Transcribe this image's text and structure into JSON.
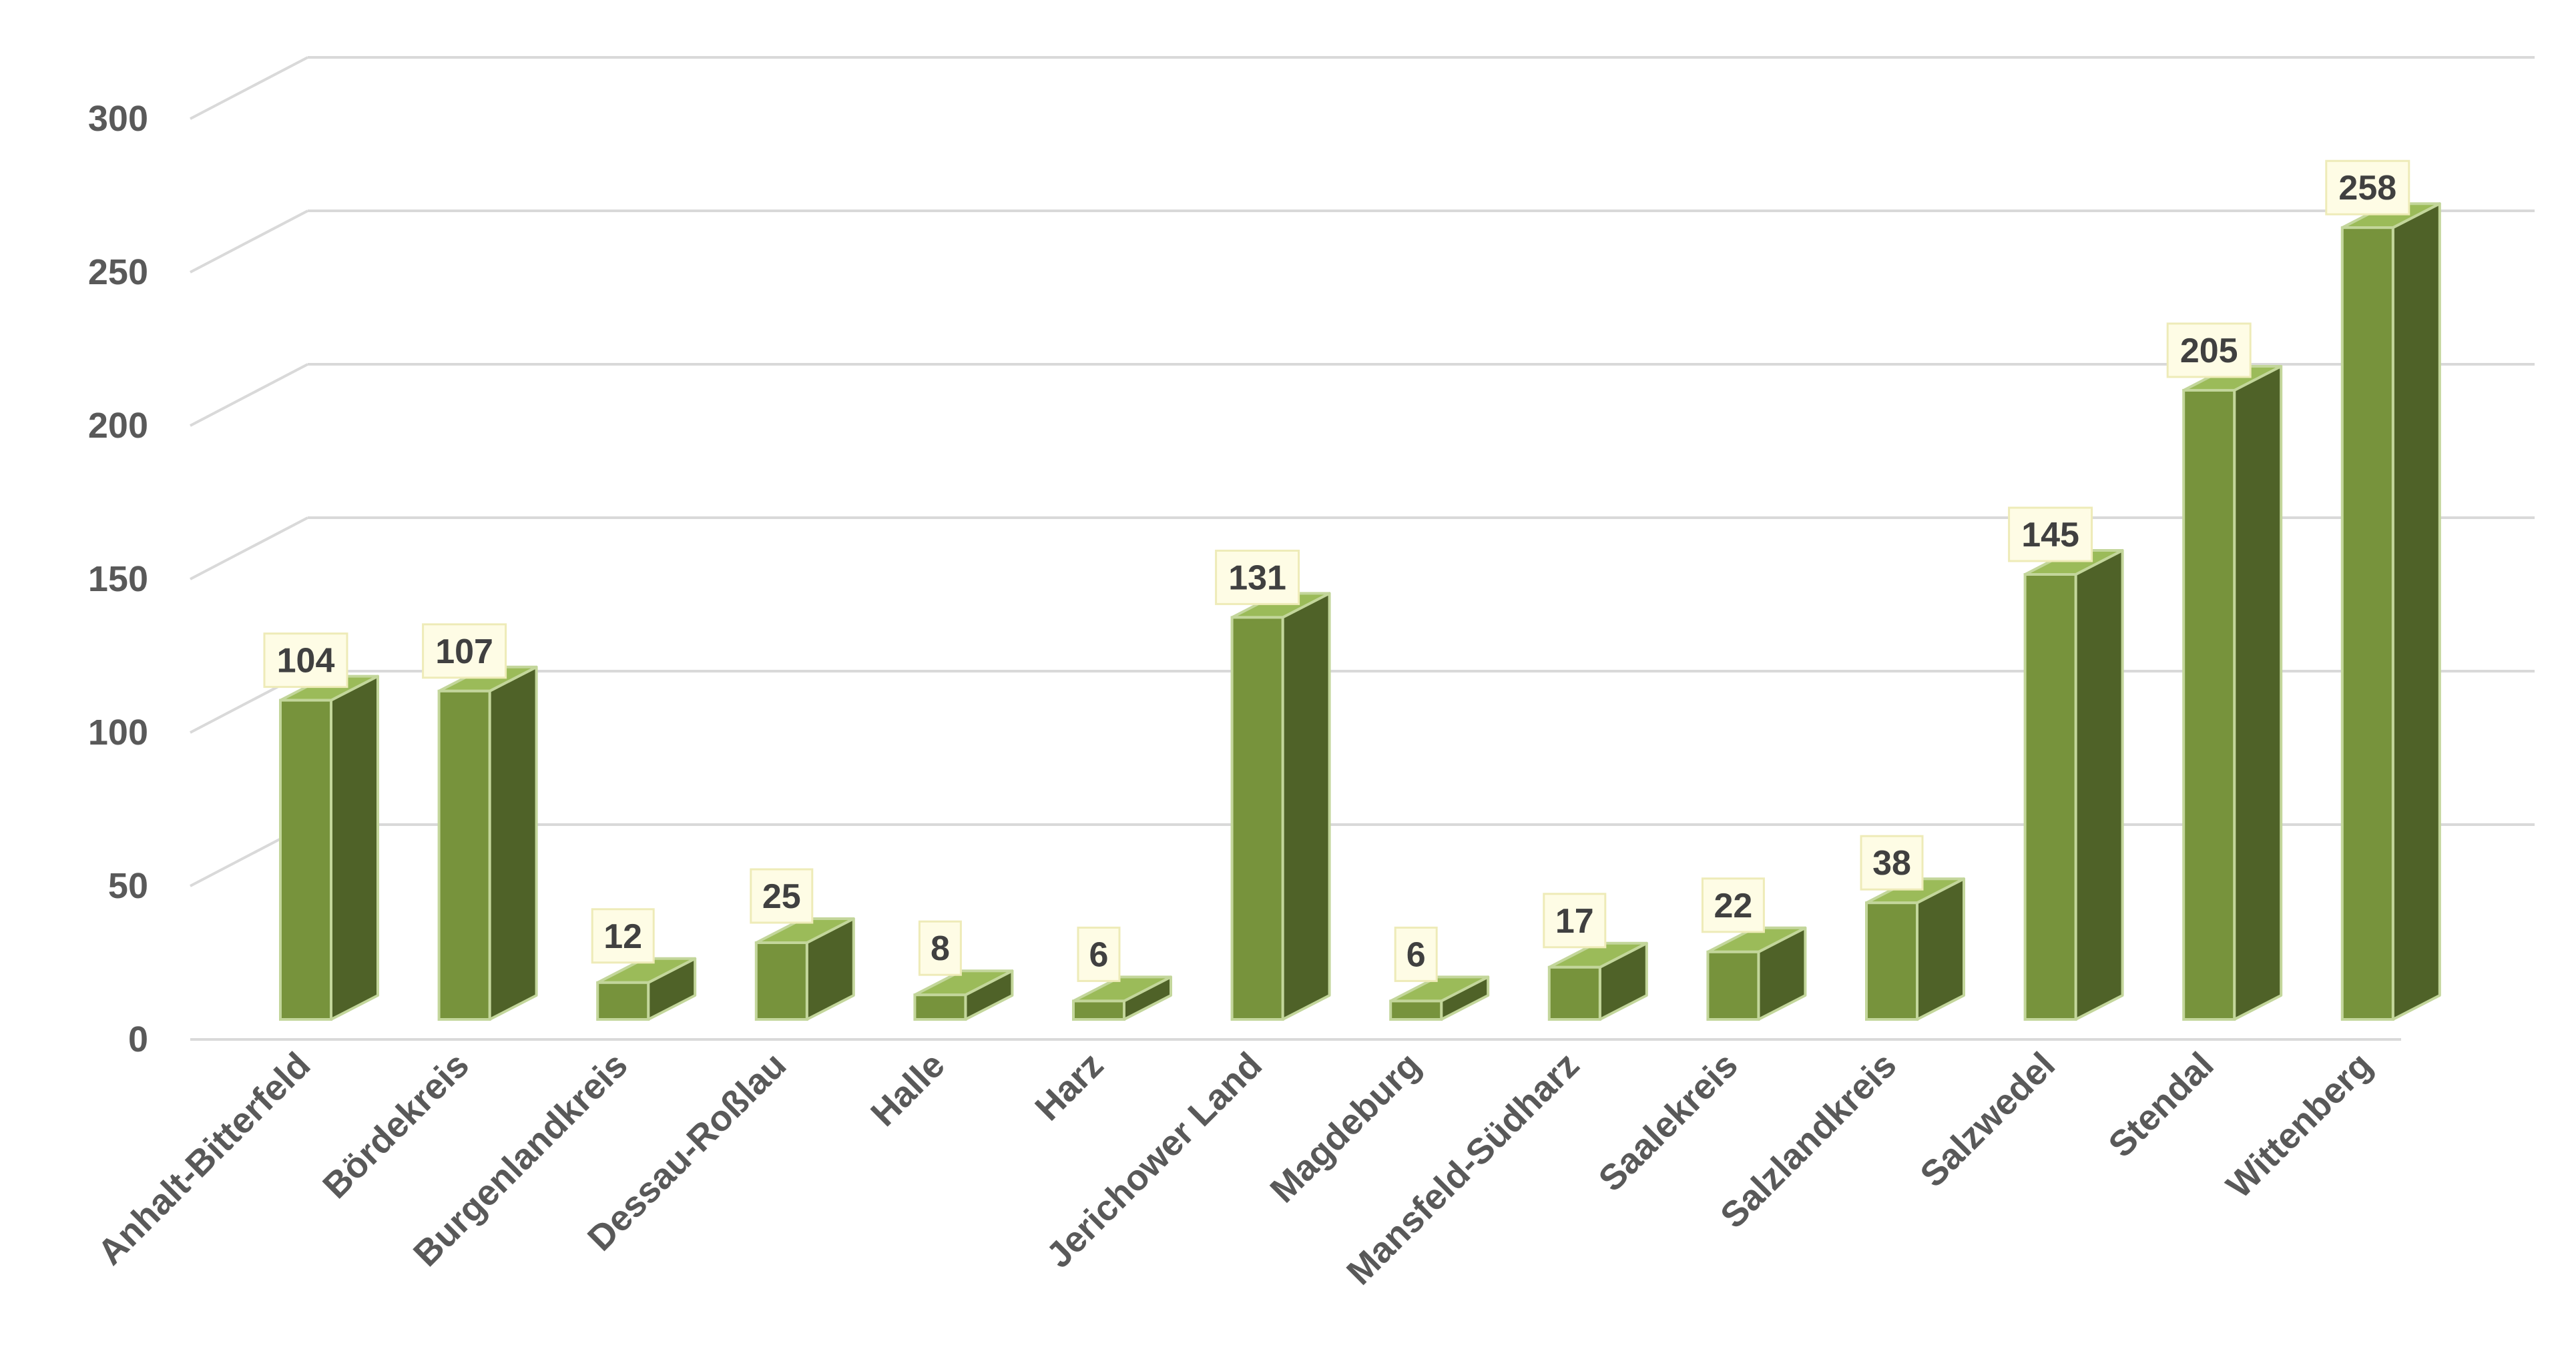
{
  "chart_data": {
    "type": "bar",
    "categories": [
      "Anhalt-Bitterfeld",
      "Bördekreis",
      "Burgenlandkreis",
      "Dessau-Roßlau",
      "Halle",
      "Harz",
      "Jerichower Land",
      "Magdeburg",
      "Mansfeld-Südharz",
      "Saalekreis",
      "Salzlandkreis",
      "Salzwedel",
      "Stendal",
      "Wittenberg"
    ],
    "values": [
      104,
      107,
      12,
      25,
      8,
      6,
      131,
      6,
      17,
      22,
      38,
      145,
      205,
      258
    ],
    "data_labels": [
      "104",
      "107",
      "12",
      "25",
      "8",
      "6",
      "131",
      "6",
      "17",
      "22",
      "38",
      "145",
      "205",
      "258"
    ],
    "y_ticks": [
      "0",
      "50",
      "100",
      "150",
      "200",
      "250",
      "300"
    ],
    "ylim": [
      0,
      300
    ],
    "grid": true,
    "style": "3d-column",
    "colors": {
      "bar_front": "#77933C",
      "bar_side": "#4F6228",
      "bar_top": "#9BBB59",
      "bar_edge": "#C3D69B",
      "label_box": "#FEFCE5",
      "label_box_border": "#EEEBB8",
      "gridline": "#D9D9D9",
      "axis_text": "#595959",
      "label_text": "#404040"
    }
  }
}
